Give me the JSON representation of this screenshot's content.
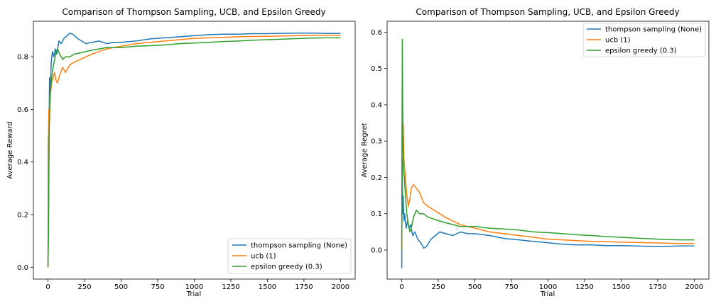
{
  "chart_data": [
    {
      "type": "line",
      "title": "Comparison of Thompson Sampling, UCB, and Epsilon Greedy",
      "xlabel": "Trial",
      "ylabel": "Average Reward",
      "xlim": [
        -100,
        2100
      ],
      "ylim": [
        -0.045,
        0.935
      ],
      "xticks": [
        0,
        250,
        500,
        750,
        1000,
        1250,
        1500,
        1750,
        2000
      ],
      "xtick_labels": [
        "0",
        "250",
        "500",
        "750",
        "1000",
        "1250",
        "1500",
        "1750",
        "2000"
      ],
      "yticks": [
        0.0,
        0.2,
        0.4,
        0.6,
        0.8
      ],
      "ytick_labels": [
        "0.0",
        "0.2",
        "0.4",
        "0.6",
        "0.8"
      ],
      "grid": false,
      "legend_position": "lower-right",
      "series": [
        {
          "name": "thompson sampling (None)",
          "color": "#1f77b4",
          "points": [
            [
              0,
              0.0
            ],
            [
              2,
              0.5
            ],
            [
              5,
              0.33
            ],
            [
              10,
              0.72
            ],
            [
              15,
              0.65
            ],
            [
              22,
              0.78
            ],
            [
              30,
              0.82
            ],
            [
              40,
              0.8
            ],
            [
              50,
              0.83
            ],
            [
              60,
              0.81
            ],
            [
              75,
              0.86
            ],
            [
              90,
              0.85
            ],
            [
              110,
              0.87
            ],
            [
              130,
              0.88
            ],
            [
              150,
              0.89
            ],
            [
              170,
              0.885
            ],
            [
              200,
              0.87
            ],
            [
              230,
              0.86
            ],
            [
              260,
              0.85
            ],
            [
              300,
              0.855
            ],
            [
              350,
              0.86
            ],
            [
              400,
              0.85
            ],
            [
              450,
              0.855
            ],
            [
              500,
              0.855
            ],
            [
              600,
              0.86
            ],
            [
              700,
              0.868
            ],
            [
              800,
              0.872
            ],
            [
              900,
              0.876
            ],
            [
              1000,
              0.88
            ],
            [
              1100,
              0.884
            ],
            [
              1200,
              0.886
            ],
            [
              1300,
              0.886
            ],
            [
              1400,
              0.888
            ],
            [
              1500,
              0.888
            ],
            [
              1600,
              0.889
            ],
            [
              1700,
              0.89
            ],
            [
              1800,
              0.89
            ],
            [
              1900,
              0.889
            ],
            [
              2000,
              0.889
            ]
          ]
        },
        {
          "name": "ucb (1)",
          "color": "#ff7f0e",
          "points": [
            [
              0,
              0.0
            ],
            [
              3,
              0.5
            ],
            [
              6,
              0.6
            ],
            [
              10,
              0.55
            ],
            [
              15,
              0.65
            ],
            [
              25,
              0.7
            ],
            [
              35,
              0.72
            ],
            [
              45,
              0.74
            ],
            [
              55,
              0.71
            ],
            [
              65,
              0.7
            ],
            [
              80,
              0.73
            ],
            [
              100,
              0.76
            ],
            [
              120,
              0.74
            ],
            [
              150,
              0.77
            ],
            [
              180,
              0.78
            ],
            [
              220,
              0.79
            ],
            [
              260,
              0.8
            ],
            [
              300,
              0.81
            ],
            [
              350,
              0.82
            ],
            [
              400,
              0.83
            ],
            [
              450,
              0.835
            ],
            [
              500,
              0.84
            ],
            [
              600,
              0.85
            ],
            [
              700,
              0.855
            ],
            [
              800,
              0.86
            ],
            [
              900,
              0.865
            ],
            [
              1000,
              0.87
            ],
            [
              1100,
              0.872
            ],
            [
              1200,
              0.874
            ],
            [
              1300,
              0.876
            ],
            [
              1400,
              0.877
            ],
            [
              1500,
              0.878
            ],
            [
              1600,
              0.879
            ],
            [
              1700,
              0.88
            ],
            [
              1800,
              0.881
            ],
            [
              1900,
              0.882
            ],
            [
              2000,
              0.882
            ]
          ]
        },
        {
          "name": "epsilon greedy (0.3)",
          "color": "#2ca02c",
          "points": [
            [
              0,
              0.0
            ],
            [
              4,
              0.15
            ],
            [
              8,
              0.5
            ],
            [
              12,
              0.62
            ],
            [
              18,
              0.68
            ],
            [
              25,
              0.72
            ],
            [
              35,
              0.76
            ],
            [
              45,
              0.79
            ],
            [
              55,
              0.82
            ],
            [
              65,
              0.83
            ],
            [
              80,
              0.81
            ],
            [
              100,
              0.79
            ],
            [
              120,
              0.8
            ],
            [
              150,
              0.8
            ],
            [
              180,
              0.81
            ],
            [
              220,
              0.815
            ],
            [
              260,
              0.82
            ],
            [
              300,
              0.825
            ],
            [
              350,
              0.83
            ],
            [
              400,
              0.835
            ],
            [
              450,
              0.835
            ],
            [
              500,
              0.835
            ],
            [
              600,
              0.84
            ],
            [
              700,
              0.842
            ],
            [
              800,
              0.845
            ],
            [
              900,
              0.85
            ],
            [
              1000,
              0.852
            ],
            [
              1100,
              0.855
            ],
            [
              1200,
              0.858
            ],
            [
              1300,
              0.86
            ],
            [
              1400,
              0.863
            ],
            [
              1500,
              0.865
            ],
            [
              1600,
              0.867
            ],
            [
              1700,
              0.869
            ],
            [
              1800,
              0.871
            ],
            [
              1900,
              0.872
            ],
            [
              2000,
              0.872
            ]
          ]
        }
      ]
    },
    {
      "type": "line",
      "title": "Comparison of Thompson Sampling, UCB, and Epsilon Greedy",
      "xlabel": "Trial",
      "ylabel": "Average Regret",
      "xlim": [
        -100,
        2100
      ],
      "ylim": [
        -0.08,
        0.63
      ],
      "xticks": [
        0,
        250,
        500,
        750,
        1000,
        1250,
        1500,
        1750,
        2000
      ],
      "xtick_labels": [
        "0",
        "250",
        "500",
        "750",
        "1000",
        "1250",
        "1500",
        "1750",
        "2000"
      ],
      "yticks": [
        0.0,
        0.1,
        0.2,
        0.3,
        0.4,
        0.5,
        0.6
      ],
      "ytick_labels": [
        "0.0",
        "0.1",
        "0.2",
        "0.3",
        "0.4",
        "0.5",
        "0.6"
      ],
      "grid": false,
      "legend_position": "upper-right",
      "series": [
        {
          "name": "thompson sampling (None)",
          "color": "#1f77b4",
          "points": [
            [
              0,
              -0.05
            ],
            [
              3,
              0.25
            ],
            [
              6,
              0.1
            ],
            [
              10,
              0.15
            ],
            [
              15,
              0.08
            ],
            [
              20,
              0.1
            ],
            [
              30,
              0.06
            ],
            [
              40,
              0.08
            ],
            [
              50,
              0.06
            ],
            [
              60,
              0.07
            ],
            [
              75,
              0.04
            ],
            [
              90,
              0.05
            ],
            [
              110,
              0.03
            ],
            [
              130,
              0.02
            ],
            [
              150,
              0.005
            ],
            [
              170,
              0.01
            ],
            [
              200,
              0.03
            ],
            [
              230,
              0.04
            ],
            [
              260,
              0.05
            ],
            [
              300,
              0.045
            ],
            [
              350,
              0.04
            ],
            [
              400,
              0.05
            ],
            [
              450,
              0.045
            ],
            [
              500,
              0.045
            ],
            [
              600,
              0.04
            ],
            [
              700,
              0.032
            ],
            [
              800,
              0.028
            ],
            [
              900,
              0.024
            ],
            [
              1000,
              0.02
            ],
            [
              1100,
              0.016
            ],
            [
              1200,
              0.014
            ],
            [
              1300,
              0.014
            ],
            [
              1400,
              0.012
            ],
            [
              1500,
              0.012
            ],
            [
              1600,
              0.011
            ],
            [
              1700,
              0.01
            ],
            [
              1800,
              0.01
            ],
            [
              1900,
              0.011
            ],
            [
              2000,
              0.011
            ]
          ]
        },
        {
          "name": "ucb (1)",
          "color": "#ff7f0e",
          "points": [
            [
              0,
              0.0
            ],
            [
              3,
              0.45
            ],
            [
              6,
              0.3
            ],
            [
              10,
              0.35
            ],
            [
              15,
              0.25
            ],
            [
              25,
              0.2
            ],
            [
              35,
              0.15
            ],
            [
              45,
              0.12
            ],
            [
              55,
              0.14
            ],
            [
              65,
              0.17
            ],
            [
              80,
              0.18
            ],
            [
              100,
              0.17
            ],
            [
              120,
              0.16
            ],
            [
              150,
              0.13
            ],
            [
              180,
              0.12
            ],
            [
              220,
              0.11
            ],
            [
              260,
              0.1
            ],
            [
              300,
              0.09
            ],
            [
              350,
              0.08
            ],
            [
              400,
              0.07
            ],
            [
              450,
              0.065
            ],
            [
              500,
              0.06
            ],
            [
              600,
              0.05
            ],
            [
              700,
              0.045
            ],
            [
              800,
              0.04
            ],
            [
              900,
              0.035
            ],
            [
              1000,
              0.03
            ],
            [
              1100,
              0.028
            ],
            [
              1200,
              0.026
            ],
            [
              1300,
              0.024
            ],
            [
              1400,
              0.023
            ],
            [
              1500,
              0.022
            ],
            [
              1600,
              0.021
            ],
            [
              1700,
              0.02
            ],
            [
              1800,
              0.019
            ],
            [
              1900,
              0.018
            ],
            [
              2000,
              0.018
            ]
          ]
        },
        {
          "name": "epsilon greedy (0.3)",
          "color": "#2ca02c",
          "points": [
            [
              0,
              0.0
            ],
            [
              4,
              0.58
            ],
            [
              8,
              0.3
            ],
            [
              12,
              0.22
            ],
            [
              18,
              0.2
            ],
            [
              25,
              0.15
            ],
            [
              35,
              0.1
            ],
            [
              45,
              0.07
            ],
            [
              55,
              0.05
            ],
            [
              65,
              0.06
            ],
            [
              80,
              0.09
            ],
            [
              100,
              0.11
            ],
            [
              120,
              0.1
            ],
            [
              150,
              0.1
            ],
            [
              180,
              0.09
            ],
            [
              220,
              0.085
            ],
            [
              260,
              0.08
            ],
            [
              300,
              0.075
            ],
            [
              350,
              0.07
            ],
            [
              400,
              0.065
            ],
            [
              450,
              0.065
            ],
            [
              500,
              0.065
            ],
            [
              600,
              0.06
            ],
            [
              700,
              0.058
            ],
            [
              800,
              0.055
            ],
            [
              900,
              0.05
            ],
            [
              1000,
              0.048
            ],
            [
              1100,
              0.045
            ],
            [
              1200,
              0.042
            ],
            [
              1300,
              0.04
            ],
            [
              1400,
              0.037
            ],
            [
              1500,
              0.035
            ],
            [
              1600,
              0.033
            ],
            [
              1700,
              0.031
            ],
            [
              1800,
              0.029
            ],
            [
              1900,
              0.028
            ],
            [
              2000,
              0.028
            ]
          ]
        }
      ]
    }
  ]
}
